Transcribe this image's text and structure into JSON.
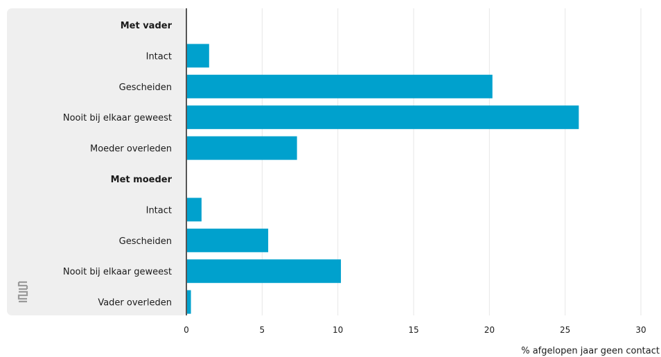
{
  "chart_data": {
    "type": "bar",
    "orientation": "horizontal",
    "xlabel": "% afgelopen jaar geen contact",
    "xlim": [
      0,
      30
    ],
    "xticks": [
      0,
      5,
      10,
      15,
      20,
      25,
      30
    ],
    "grid": true,
    "bar_color": "#00a1cd",
    "label_panel_color": "#efefef",
    "logo": "cbs-logo",
    "rows": [
      {
        "label": "Met vader",
        "is_group": true
      },
      {
        "label": "Intact",
        "value": 1.5
      },
      {
        "label": "Gescheiden",
        "value": 20.2
      },
      {
        "label": "Nooit bij elkaar geweest",
        "value": 25.9
      },
      {
        "label": "Moeder overleden",
        "value": 7.3
      },
      {
        "label": "Met moeder",
        "is_group": true
      },
      {
        "label": "Intact",
        "value": 1.0
      },
      {
        "label": "Gescheiden",
        "value": 5.4
      },
      {
        "label": "Nooit bij elkaar geweest",
        "value": 10.2
      },
      {
        "label": "Vader overleden",
        "value": 0.3
      }
    ]
  }
}
